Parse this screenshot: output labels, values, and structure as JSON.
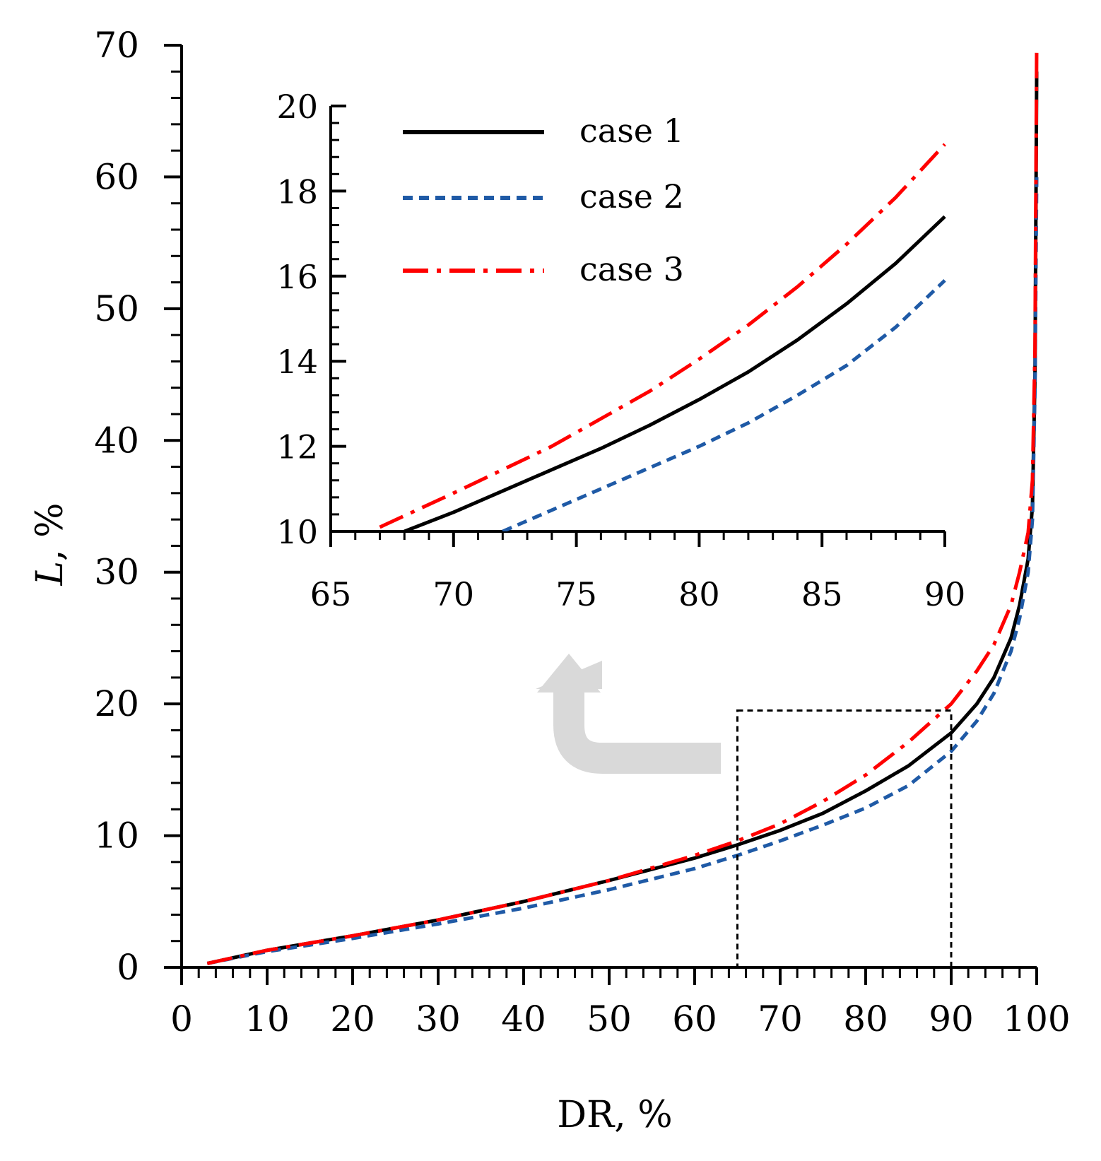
{
  "chart_data": [
    {
      "type": "line",
      "role": "main",
      "xlabel": "DR, %",
      "ylabel_italic": "L",
      "ylabel_rest": ", %",
      "xlim": [
        0,
        100
      ],
      "ylim": [
        0,
        70
      ],
      "xticks": [
        0,
        10,
        20,
        30,
        40,
        50,
        60,
        70,
        80,
        90,
        100
      ],
      "xtick_labels": [
        "0",
        "10",
        "20",
        "30",
        "40",
        "50",
        "60",
        "70",
        "80",
        "90",
        "100"
      ],
      "yticks": [
        0,
        10,
        20,
        30,
        40,
        50,
        60,
        70
      ],
      "ytick_labels": [
        "0",
        "10",
        "20",
        "30",
        "40",
        "50",
        "60",
        "70"
      ],
      "zoom_box": {
        "x": [
          65,
          90
        ],
        "y": [
          0,
          19.5
        ]
      },
      "series": [
        {
          "name": "case 1",
          "color": "#000000",
          "style": "solid",
          "x": [
            3,
            10,
            20,
            30,
            40,
            50,
            60,
            65,
            70,
            75,
            80,
            85,
            90,
            93,
            95,
            97,
            98,
            99,
            99.5,
            99.8,
            100
          ],
          "y": [
            0.3,
            1.3,
            2.4,
            3.6,
            5.0,
            6.6,
            8.3,
            9.3,
            10.4,
            11.7,
            13.4,
            15.3,
            17.8,
            20.0,
            22.0,
            25.0,
            27.5,
            31.0,
            35.0,
            45.0,
            68.0
          ]
        },
        {
          "name": "case 2",
          "color": "#1f5aa6",
          "style": "dashed",
          "x": [
            3,
            10,
            20,
            30,
            40,
            50,
            60,
            65,
            70,
            75,
            80,
            85,
            90,
            93,
            95,
            97,
            98,
            99,
            99.5,
            99.8,
            100
          ],
          "y": [
            0.3,
            1.2,
            2.2,
            3.3,
            4.5,
            5.9,
            7.5,
            8.5,
            9.6,
            10.8,
            12.1,
            13.8,
            16.4,
            18.7,
            20.8,
            24.0,
            26.5,
            30.0,
            34.0,
            44.0,
            60.0
          ]
        },
        {
          "name": "case 3",
          "color": "#ff0000",
          "style": "dashdot",
          "x": [
            3,
            10,
            20,
            30,
            40,
            50,
            60,
            65,
            70,
            75,
            80,
            85,
            90,
            93,
            95,
            97,
            98,
            99,
            99.5,
            99.8,
            100
          ],
          "y": [
            0.3,
            1.3,
            2.4,
            3.6,
            5.0,
            6.6,
            8.5,
            9.6,
            10.9,
            12.6,
            14.6,
            17.1,
            20.0,
            22.5,
            24.5,
            27.5,
            30.0,
            33.0,
            37.0,
            47.0,
            70.0
          ]
        }
      ]
    },
    {
      "type": "line",
      "role": "inset",
      "xlim": [
        65,
        90
      ],
      "ylim": [
        10,
        20
      ],
      "xticks": [
        65,
        70,
        75,
        80,
        85,
        90
      ],
      "xtick_labels": [
        "65",
        "70",
        "75",
        "80",
        "85",
        "90"
      ],
      "yticks": [
        10,
        12,
        14,
        16,
        18,
        20
      ],
      "ytick_labels": [
        "10",
        "12",
        "14",
        "16",
        "18",
        "20"
      ],
      "legend": {
        "position": "top-left",
        "entries": [
          "case 1",
          "case 2",
          "case 3"
        ]
      },
      "series": [
        {
          "name": "case 1",
          "color": "#000000",
          "style": "solid",
          "x": [
            68,
            70,
            72,
            74,
            76,
            78,
            80,
            82,
            84,
            86,
            88,
            90
          ],
          "y": [
            10.0,
            10.45,
            10.95,
            11.45,
            11.95,
            12.5,
            13.1,
            13.75,
            14.5,
            15.35,
            16.3,
            17.4
          ]
        },
        {
          "name": "case 2",
          "color": "#1f5aa6",
          "style": "dashed",
          "x": [
            72,
            74,
            76,
            78,
            80,
            82,
            84,
            86,
            88,
            90
          ],
          "y": [
            10.0,
            10.5,
            11.0,
            11.5,
            12.0,
            12.55,
            13.2,
            13.9,
            14.8,
            15.9
          ]
        },
        {
          "name": "case 3",
          "color": "#ff0000",
          "style": "dashdot",
          "x": [
            67,
            70,
            72,
            74,
            76,
            78,
            80,
            82,
            84,
            86,
            88,
            90
          ],
          "y": [
            10.1,
            10.9,
            11.45,
            12.0,
            12.65,
            13.3,
            14.05,
            14.85,
            15.75,
            16.75,
            17.85,
            19.1
          ]
        }
      ]
    }
  ]
}
